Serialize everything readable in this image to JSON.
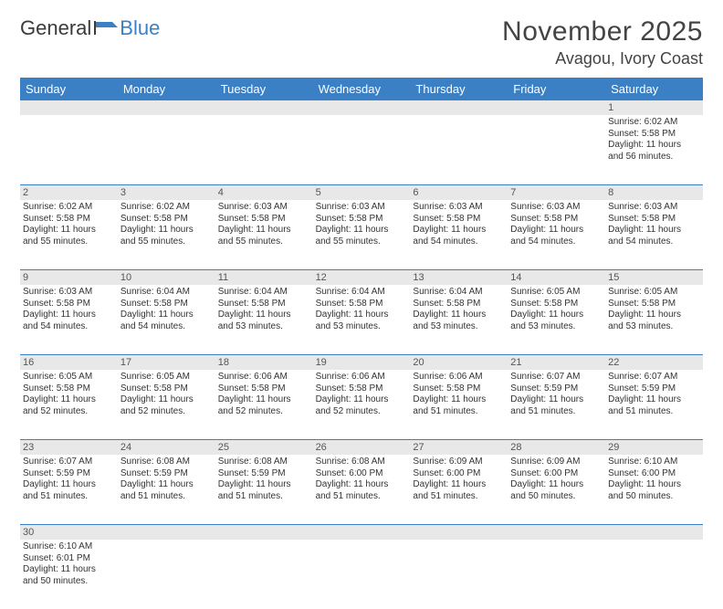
{
  "logo": {
    "text_general": "General",
    "text_blue": "Blue"
  },
  "title": "November 2025",
  "location": "Avagou, Ivory Coast",
  "colors": {
    "header_bg": "#3b7fc4",
    "header_text": "#ffffff",
    "daynum_bg": "#e8e8e8",
    "border": "#3b7fc4",
    "body_text": "#333333",
    "title_text": "#444444"
  },
  "fonts": {
    "title_size": 30,
    "location_size": 18,
    "dayname_size": 13,
    "daynum_size": 11,
    "detail_size": 10
  },
  "day_names": [
    "Sunday",
    "Monday",
    "Tuesday",
    "Wednesday",
    "Thursday",
    "Friday",
    "Saturday"
  ],
  "weeks": [
    [
      null,
      null,
      null,
      null,
      null,
      null,
      {
        "n": "1",
        "sunrise": "Sunrise: 6:02 AM",
        "sunset": "Sunset: 5:58 PM",
        "day1": "Daylight: 11 hours",
        "day2": "and 56 minutes."
      }
    ],
    [
      {
        "n": "2",
        "sunrise": "Sunrise: 6:02 AM",
        "sunset": "Sunset: 5:58 PM",
        "day1": "Daylight: 11 hours",
        "day2": "and 55 minutes."
      },
      {
        "n": "3",
        "sunrise": "Sunrise: 6:02 AM",
        "sunset": "Sunset: 5:58 PM",
        "day1": "Daylight: 11 hours",
        "day2": "and 55 minutes."
      },
      {
        "n": "4",
        "sunrise": "Sunrise: 6:03 AM",
        "sunset": "Sunset: 5:58 PM",
        "day1": "Daylight: 11 hours",
        "day2": "and 55 minutes."
      },
      {
        "n": "5",
        "sunrise": "Sunrise: 6:03 AM",
        "sunset": "Sunset: 5:58 PM",
        "day1": "Daylight: 11 hours",
        "day2": "and 55 minutes."
      },
      {
        "n": "6",
        "sunrise": "Sunrise: 6:03 AM",
        "sunset": "Sunset: 5:58 PM",
        "day1": "Daylight: 11 hours",
        "day2": "and 54 minutes."
      },
      {
        "n": "7",
        "sunrise": "Sunrise: 6:03 AM",
        "sunset": "Sunset: 5:58 PM",
        "day1": "Daylight: 11 hours",
        "day2": "and 54 minutes."
      },
      {
        "n": "8",
        "sunrise": "Sunrise: 6:03 AM",
        "sunset": "Sunset: 5:58 PM",
        "day1": "Daylight: 11 hours",
        "day2": "and 54 minutes."
      }
    ],
    [
      {
        "n": "9",
        "sunrise": "Sunrise: 6:03 AM",
        "sunset": "Sunset: 5:58 PM",
        "day1": "Daylight: 11 hours",
        "day2": "and 54 minutes."
      },
      {
        "n": "10",
        "sunrise": "Sunrise: 6:04 AM",
        "sunset": "Sunset: 5:58 PM",
        "day1": "Daylight: 11 hours",
        "day2": "and 54 minutes."
      },
      {
        "n": "11",
        "sunrise": "Sunrise: 6:04 AM",
        "sunset": "Sunset: 5:58 PM",
        "day1": "Daylight: 11 hours",
        "day2": "and 53 minutes."
      },
      {
        "n": "12",
        "sunrise": "Sunrise: 6:04 AM",
        "sunset": "Sunset: 5:58 PM",
        "day1": "Daylight: 11 hours",
        "day2": "and 53 minutes."
      },
      {
        "n": "13",
        "sunrise": "Sunrise: 6:04 AM",
        "sunset": "Sunset: 5:58 PM",
        "day1": "Daylight: 11 hours",
        "day2": "and 53 minutes."
      },
      {
        "n": "14",
        "sunrise": "Sunrise: 6:05 AM",
        "sunset": "Sunset: 5:58 PM",
        "day1": "Daylight: 11 hours",
        "day2": "and 53 minutes."
      },
      {
        "n": "15",
        "sunrise": "Sunrise: 6:05 AM",
        "sunset": "Sunset: 5:58 PM",
        "day1": "Daylight: 11 hours",
        "day2": "and 53 minutes."
      }
    ],
    [
      {
        "n": "16",
        "sunrise": "Sunrise: 6:05 AM",
        "sunset": "Sunset: 5:58 PM",
        "day1": "Daylight: 11 hours",
        "day2": "and 52 minutes."
      },
      {
        "n": "17",
        "sunrise": "Sunrise: 6:05 AM",
        "sunset": "Sunset: 5:58 PM",
        "day1": "Daylight: 11 hours",
        "day2": "and 52 minutes."
      },
      {
        "n": "18",
        "sunrise": "Sunrise: 6:06 AM",
        "sunset": "Sunset: 5:58 PM",
        "day1": "Daylight: 11 hours",
        "day2": "and 52 minutes."
      },
      {
        "n": "19",
        "sunrise": "Sunrise: 6:06 AM",
        "sunset": "Sunset: 5:58 PM",
        "day1": "Daylight: 11 hours",
        "day2": "and 52 minutes."
      },
      {
        "n": "20",
        "sunrise": "Sunrise: 6:06 AM",
        "sunset": "Sunset: 5:58 PM",
        "day1": "Daylight: 11 hours",
        "day2": "and 51 minutes."
      },
      {
        "n": "21",
        "sunrise": "Sunrise: 6:07 AM",
        "sunset": "Sunset: 5:59 PM",
        "day1": "Daylight: 11 hours",
        "day2": "and 51 minutes."
      },
      {
        "n": "22",
        "sunrise": "Sunrise: 6:07 AM",
        "sunset": "Sunset: 5:59 PM",
        "day1": "Daylight: 11 hours",
        "day2": "and 51 minutes."
      }
    ],
    [
      {
        "n": "23",
        "sunrise": "Sunrise: 6:07 AM",
        "sunset": "Sunset: 5:59 PM",
        "day1": "Daylight: 11 hours",
        "day2": "and 51 minutes."
      },
      {
        "n": "24",
        "sunrise": "Sunrise: 6:08 AM",
        "sunset": "Sunset: 5:59 PM",
        "day1": "Daylight: 11 hours",
        "day2": "and 51 minutes."
      },
      {
        "n": "25",
        "sunrise": "Sunrise: 6:08 AM",
        "sunset": "Sunset: 5:59 PM",
        "day1": "Daylight: 11 hours",
        "day2": "and 51 minutes."
      },
      {
        "n": "26",
        "sunrise": "Sunrise: 6:08 AM",
        "sunset": "Sunset: 6:00 PM",
        "day1": "Daylight: 11 hours",
        "day2": "and 51 minutes."
      },
      {
        "n": "27",
        "sunrise": "Sunrise: 6:09 AM",
        "sunset": "Sunset: 6:00 PM",
        "day1": "Daylight: 11 hours",
        "day2": "and 51 minutes."
      },
      {
        "n": "28",
        "sunrise": "Sunrise: 6:09 AM",
        "sunset": "Sunset: 6:00 PM",
        "day1": "Daylight: 11 hours",
        "day2": "and 50 minutes."
      },
      {
        "n": "29",
        "sunrise": "Sunrise: 6:10 AM",
        "sunset": "Sunset: 6:00 PM",
        "day1": "Daylight: 11 hours",
        "day2": "and 50 minutes."
      }
    ],
    [
      {
        "n": "30",
        "sunrise": "Sunrise: 6:10 AM",
        "sunset": "Sunset: 6:01 PM",
        "day1": "Daylight: 11 hours",
        "day2": "and 50 minutes."
      },
      null,
      null,
      null,
      null,
      null,
      null
    ]
  ]
}
